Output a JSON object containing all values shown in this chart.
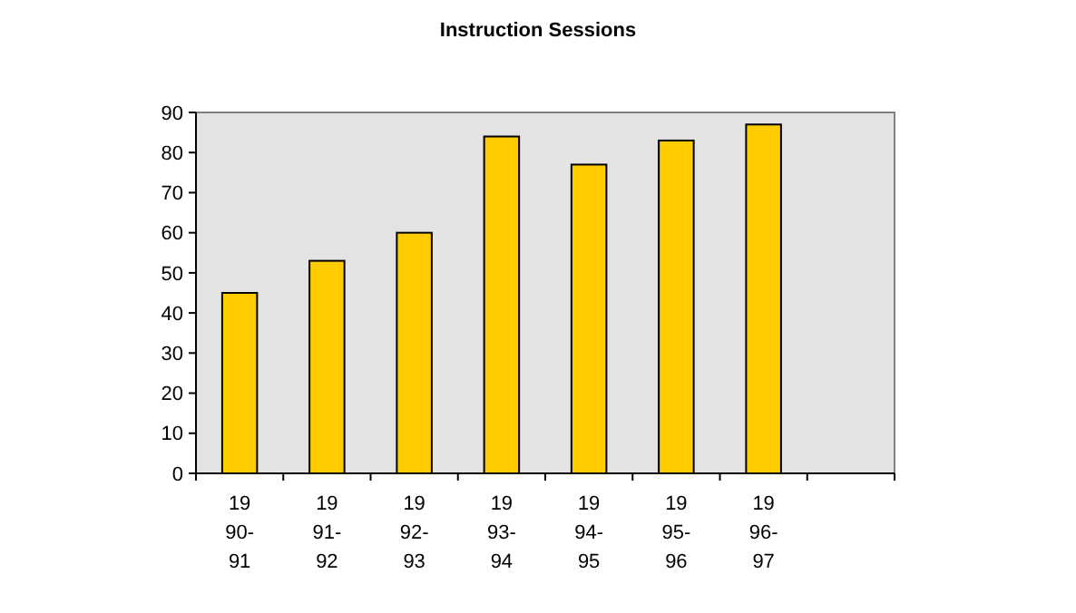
{
  "chart_data": {
    "type": "bar",
    "title": "Instruction Sessions",
    "categories": [
      "19\n90-\n91",
      "19\n91-\n92",
      "19\n92-\n93",
      "19\n93-\n94",
      "19\n94-\n95",
      "19\n95-\n96",
      "19\n96-\n97",
      null
    ],
    "values": [
      45,
      53,
      60,
      84,
      77,
      83,
      87,
      null
    ],
    "color": "#ffcc00",
    "ylim": [
      0,
      90
    ],
    "yticks": [
      0,
      10,
      20,
      30,
      40,
      50,
      60,
      70,
      80,
      90
    ],
    "grid": false
  }
}
